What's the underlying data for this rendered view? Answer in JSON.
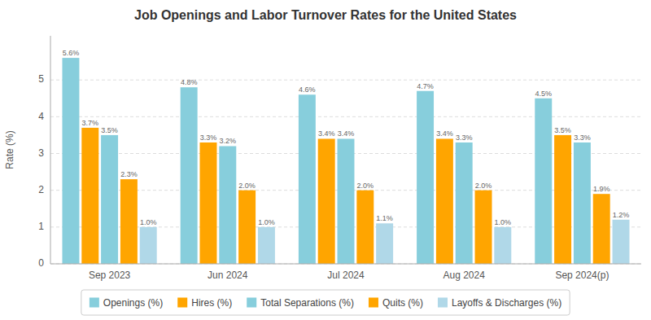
{
  "chart_data": {
    "type": "bar",
    "title": "Job Openings and Labor Turnover Rates for the United States",
    "categories": [
      "Sep 2023",
      "Jun 2024",
      "Jul 2024",
      "Aug 2024",
      "Sep 2024(p)"
    ],
    "series": [
      {
        "name": "Openings (%)",
        "color": "#87CEDC",
        "values": [
          5.6,
          4.8,
          4.6,
          4.7,
          4.5
        ],
        "value_labels": [
          "5.6%",
          "4.8%",
          "4.6%",
          "4.7%",
          "4.5%"
        ]
      },
      {
        "name": "Hires (%)",
        "color": "#FFA500",
        "values": [
          3.7,
          3.3,
          3.4,
          3.4,
          3.5
        ],
        "value_labels": [
          "3.7%",
          "3.3%",
          "3.4%",
          "3.4%",
          "3.5%"
        ]
      },
      {
        "name": "Total Separations (%)",
        "color": "#87CEDC",
        "values": [
          3.5,
          3.2,
          3.4,
          3.3,
          3.3
        ],
        "value_labels": [
          "3.5%",
          "3.2%",
          "3.4%",
          "3.3%",
          "3.3%"
        ]
      },
      {
        "name": "Quits (%)",
        "color": "#FFA500",
        "values": [
          2.3,
          2.0,
          2.0,
          2.0,
          1.9
        ],
        "value_labels": [
          "2.3%",
          "2.0%",
          "2.0%",
          "2.0%",
          "1.9%"
        ]
      },
      {
        "name": "Layoffs & Discharges (%)",
        "color": "#B0D8E8",
        "values": [
          1.0,
          1.0,
          1.1,
          1.0,
          1.2
        ],
        "value_labels": [
          "1.0%",
          "1.0%",
          "1.1%",
          "1.0%",
          "1.2%"
        ]
      }
    ],
    "ylabel": "Rate (%)",
    "ylim": [
      0,
      6.2
    ],
    "yticks": [
      0,
      1,
      2,
      3,
      4,
      5
    ],
    "grid": true,
    "data_labels": true,
    "legend": "bottom"
  }
}
